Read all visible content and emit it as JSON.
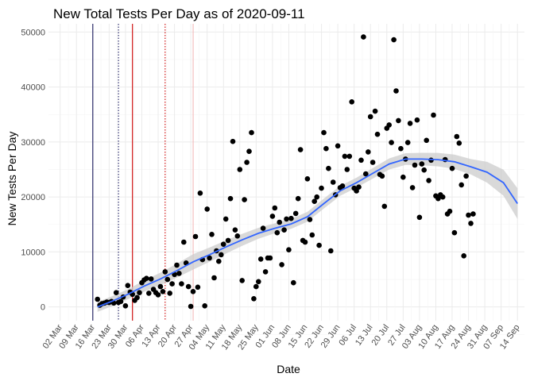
{
  "chart_data": {
    "type": "scatter",
    "title": "New Total Tests Per Day as of 2020-09-11",
    "xlabel": "Date",
    "ylabel": "New Tests Per Day",
    "x_ticks": [
      "02 Mar",
      "09 Mar",
      "16 Mar",
      "23 Mar",
      "30 Mar",
      "06 Apr",
      "13 Apr",
      "20 Apr",
      "27 Apr",
      "04 May",
      "11 May",
      "18 May",
      "25 May",
      "01 Jun",
      "08 Jun",
      "15 Jun",
      "22 Jun",
      "29 Jun",
      "06 Jul",
      "13 Jul",
      "20 Jul",
      "27 Jul",
      "03 Aug",
      "10 Aug",
      "17 Aug",
      "24 Aug",
      "31 Aug",
      "07 Sep",
      "14 Sep"
    ],
    "y_ticks": [
      0,
      10000,
      20000,
      30000,
      40000,
      50000
    ],
    "xlim": [
      "2020-02-26",
      "2020-09-17"
    ],
    "ylim": [
      -2500,
      51500
    ],
    "grid": true,
    "colors": {
      "points": "#000000",
      "smooth_line": "#3366ff",
      "confidence_band": "#cccccc",
      "vline_navy": "#1a1a5e",
      "vline_red": "#cc0000"
    },
    "vertical_lines": [
      {
        "date": "2020-03-16",
        "color": "#1a1a5e",
        "style": "solid"
      },
      {
        "date": "2020-03-27",
        "color": "#1a1a5e",
        "style": "dotted"
      },
      {
        "date": "2020-04-02",
        "color": "#cc0000",
        "style": "solid"
      },
      {
        "date": "2020-04-16",
        "color": "#cc0000",
        "style": "dotted"
      },
      {
        "date": "2020-04-28",
        "color": "#f2b8b8",
        "style": "solid"
      }
    ],
    "points": [
      [
        "2020-03-18",
        1400
      ],
      [
        "2020-03-19",
        300
      ],
      [
        "2020-03-20",
        600
      ],
      [
        "2020-03-21",
        700
      ],
      [
        "2020-03-22",
        900
      ],
      [
        "2020-03-23",
        800
      ],
      [
        "2020-03-24",
        1000
      ],
      [
        "2020-03-25",
        700
      ],
      [
        "2020-03-26",
        2600
      ],
      [
        "2020-03-27",
        800
      ],
      [
        "2020-03-28",
        1000
      ],
      [
        "2020-03-29",
        1800
      ],
      [
        "2020-03-30",
        200
      ],
      [
        "2020-03-31",
        3900
      ],
      [
        "2020-04-01",
        2700
      ],
      [
        "2020-04-02",
        2300
      ],
      [
        "2020-04-03",
        1200
      ],
      [
        "2020-04-04",
        1700
      ],
      [
        "2020-04-05",
        2600
      ],
      [
        "2020-04-06",
        4400
      ],
      [
        "2020-04-07",
        4900
      ],
      [
        "2020-04-08",
        5200
      ],
      [
        "2020-04-09",
        2500
      ],
      [
        "2020-04-10",
        5100
      ],
      [
        "2020-04-11",
        3200
      ],
      [
        "2020-04-12",
        2600
      ],
      [
        "2020-04-13",
        2200
      ],
      [
        "2020-04-14",
        3700
      ],
      [
        "2020-04-15",
        2800
      ],
      [
        "2020-04-16",
        6400
      ],
      [
        "2020-04-17",
        5000
      ],
      [
        "2020-04-18",
        2500
      ],
      [
        "2020-04-19",
        4200
      ],
      [
        "2020-04-20",
        5900
      ],
      [
        "2020-04-21",
        7600
      ],
      [
        "2020-04-22",
        6100
      ],
      [
        "2020-04-23",
        4200
      ],
      [
        "2020-04-24",
        11800
      ],
      [
        "2020-04-25",
        8000
      ],
      [
        "2020-04-26",
        3700
      ],
      [
        "2020-04-27",
        100
      ],
      [
        "2020-04-28",
        2800
      ],
      [
        "2020-04-29",
        12800
      ],
      [
        "2020-04-30",
        3600
      ],
      [
        "2020-05-01",
        20700
      ],
      [
        "2020-05-02",
        8600
      ],
      [
        "2020-05-03",
        200
      ],
      [
        "2020-05-04",
        17800
      ],
      [
        "2020-05-05",
        8900
      ],
      [
        "2020-05-06",
        13200
      ],
      [
        "2020-05-07",
        5300
      ],
      [
        "2020-05-08",
        10200
      ],
      [
        "2020-05-09",
        8300
      ],
      [
        "2020-05-10",
        9500
      ],
      [
        "2020-05-11",
        11400
      ],
      [
        "2020-05-12",
        16000
      ],
      [
        "2020-05-13",
        12100
      ],
      [
        "2020-05-14",
        19700
      ],
      [
        "2020-05-15",
        30100
      ],
      [
        "2020-05-16",
        14000
      ],
      [
        "2020-05-17",
        12900
      ],
      [
        "2020-05-18",
        25000
      ],
      [
        "2020-05-19",
        4800
      ],
      [
        "2020-05-20",
        19500
      ],
      [
        "2020-05-21",
        26300
      ],
      [
        "2020-05-22",
        28300
      ],
      [
        "2020-05-23",
        31700
      ],
      [
        "2020-05-24",
        1500
      ],
      [
        "2020-05-25",
        3700
      ],
      [
        "2020-05-26",
        4600
      ],
      [
        "2020-05-27",
        8700
      ],
      [
        "2020-05-28",
        14300
      ],
      [
        "2020-05-29",
        6400
      ],
      [
        "2020-05-30",
        8900
      ],
      [
        "2020-05-31",
        8900
      ],
      [
        "2020-06-01",
        16500
      ],
      [
        "2020-06-02",
        18000
      ],
      [
        "2020-06-03",
        13500
      ],
      [
        "2020-06-04",
        15400
      ],
      [
        "2020-06-05",
        7700
      ],
      [
        "2020-06-06",
        14000
      ],
      [
        "2020-06-07",
        16000
      ],
      [
        "2020-06-08",
        10400
      ],
      [
        "2020-06-09",
        16100
      ],
      [
        "2020-06-10",
        4400
      ],
      [
        "2020-06-11",
        17000
      ],
      [
        "2020-06-12",
        19700
      ],
      [
        "2020-06-13",
        28600
      ],
      [
        "2020-06-14",
        12100
      ],
      [
        "2020-06-15",
        11800
      ],
      [
        "2020-06-16",
        23300
      ],
      [
        "2020-06-17",
        15900
      ],
      [
        "2020-06-18",
        13100
      ],
      [
        "2020-06-19",
        19200
      ],
      [
        "2020-06-20",
        20000
      ],
      [
        "2020-06-21",
        11200
      ],
      [
        "2020-06-22",
        21600
      ],
      [
        "2020-06-23",
        31700
      ],
      [
        "2020-06-24",
        28800
      ],
      [
        "2020-06-25",
        25200
      ],
      [
        "2020-06-26",
        10200
      ],
      [
        "2020-06-27",
        22700
      ],
      [
        "2020-06-28",
        20400
      ],
      [
        "2020-06-29",
        29300
      ],
      [
        "2020-06-30",
        21700
      ],
      [
        "2020-07-01",
        22000
      ],
      [
        "2020-07-02",
        27400
      ],
      [
        "2020-07-03",
        25000
      ],
      [
        "2020-07-04",
        27400
      ],
      [
        "2020-07-05",
        37300
      ],
      [
        "2020-07-06",
        21600
      ],
      [
        "2020-07-07",
        21100
      ],
      [
        "2020-07-08",
        21800
      ],
      [
        "2020-07-09",
        26700
      ],
      [
        "2020-07-10",
        49100
      ],
      [
        "2020-07-11",
        24200
      ],
      [
        "2020-07-12",
        28200
      ],
      [
        "2020-07-13",
        34600
      ],
      [
        "2020-07-14",
        26300
      ],
      [
        "2020-07-15",
        35600
      ],
      [
        "2020-07-16",
        31400
      ],
      [
        "2020-07-17",
        24100
      ],
      [
        "2020-07-18",
        23800
      ],
      [
        "2020-07-19",
        18300
      ],
      [
        "2020-07-20",
        32500
      ],
      [
        "2020-07-21",
        33100
      ],
      [
        "2020-07-22",
        29900
      ],
      [
        "2020-07-23",
        48600
      ],
      [
        "2020-07-24",
        39300
      ],
      [
        "2020-07-25",
        33900
      ],
      [
        "2020-07-26",
        28800
      ],
      [
        "2020-07-27",
        23600
      ],
      [
        "2020-07-28",
        26900
      ],
      [
        "2020-07-29",
        29900
      ],
      [
        "2020-07-30",
        33400
      ],
      [
        "2020-07-31",
        21700
      ],
      [
        "2020-08-01",
        25800
      ],
      [
        "2020-08-02",
        34000
      ],
      [
        "2020-08-03",
        16300
      ],
      [
        "2020-08-04",
        26000
      ],
      [
        "2020-08-05",
        24900
      ],
      [
        "2020-08-06",
        30300
      ],
      [
        "2020-08-07",
        23000
      ],
      [
        "2020-08-08",
        26700
      ],
      [
        "2020-08-09",
        34900
      ],
      [
        "2020-08-10",
        20200
      ],
      [
        "2020-08-11",
        19700
      ],
      [
        "2020-08-12",
        20400
      ],
      [
        "2020-08-13",
        20000
      ],
      [
        "2020-08-14",
        26800
      ],
      [
        "2020-08-15",
        16900
      ],
      [
        "2020-08-16",
        17400
      ],
      [
        "2020-08-17",
        25200
      ],
      [
        "2020-08-18",
        13500
      ],
      [
        "2020-08-19",
        31000
      ],
      [
        "2020-08-20",
        29800
      ],
      [
        "2020-08-21",
        22200
      ],
      [
        "2020-08-22",
        9300
      ],
      [
        "2020-08-23",
        23800
      ],
      [
        "2020-08-24",
        16700
      ],
      [
        "2020-08-25",
        15200
      ],
      [
        "2020-08-26",
        16900
      ]
    ],
    "smooth": [
      [
        "2020-03-18",
        0
      ],
      [
        "2020-03-24",
        1000
      ],
      [
        "2020-03-31",
        2300
      ],
      [
        "2020-04-07",
        3800
      ],
      [
        "2020-04-14",
        5100
      ],
      [
        "2020-04-21",
        6600
      ],
      [
        "2020-04-28",
        8200
      ],
      [
        "2020-05-05",
        9500
      ],
      [
        "2020-05-12",
        10900
      ],
      [
        "2020-05-19",
        12200
      ],
      [
        "2020-05-26",
        13400
      ],
      [
        "2020-06-02",
        14300
      ],
      [
        "2020-06-09",
        15100
      ],
      [
        "2020-06-16",
        16400
      ],
      [
        "2020-06-23",
        18800
      ],
      [
        "2020-06-30",
        21100
      ],
      [
        "2020-07-07",
        22600
      ],
      [
        "2020-07-14",
        24300
      ],
      [
        "2020-07-21",
        26000
      ],
      [
        "2020-07-28",
        26900
      ],
      [
        "2020-08-04",
        26900
      ],
      [
        "2020-08-11",
        26800
      ],
      [
        "2020-08-18",
        26400
      ],
      [
        "2020-08-25",
        25500
      ],
      [
        "2020-09-01",
        24500
      ],
      [
        "2020-09-08",
        22600
      ],
      [
        "2020-09-14",
        18800
      ]
    ],
    "band_halfwidth": [
      [
        "2020-03-18",
        900
      ],
      [
        "2020-04-01",
        900
      ],
      [
        "2020-04-28",
        1400
      ],
      [
        "2020-06-01",
        900
      ],
      [
        "2020-07-07",
        900
      ],
      [
        "2020-08-01",
        1100
      ],
      [
        "2020-08-25",
        1400
      ],
      [
        "2020-09-14",
        2800
      ]
    ]
  }
}
